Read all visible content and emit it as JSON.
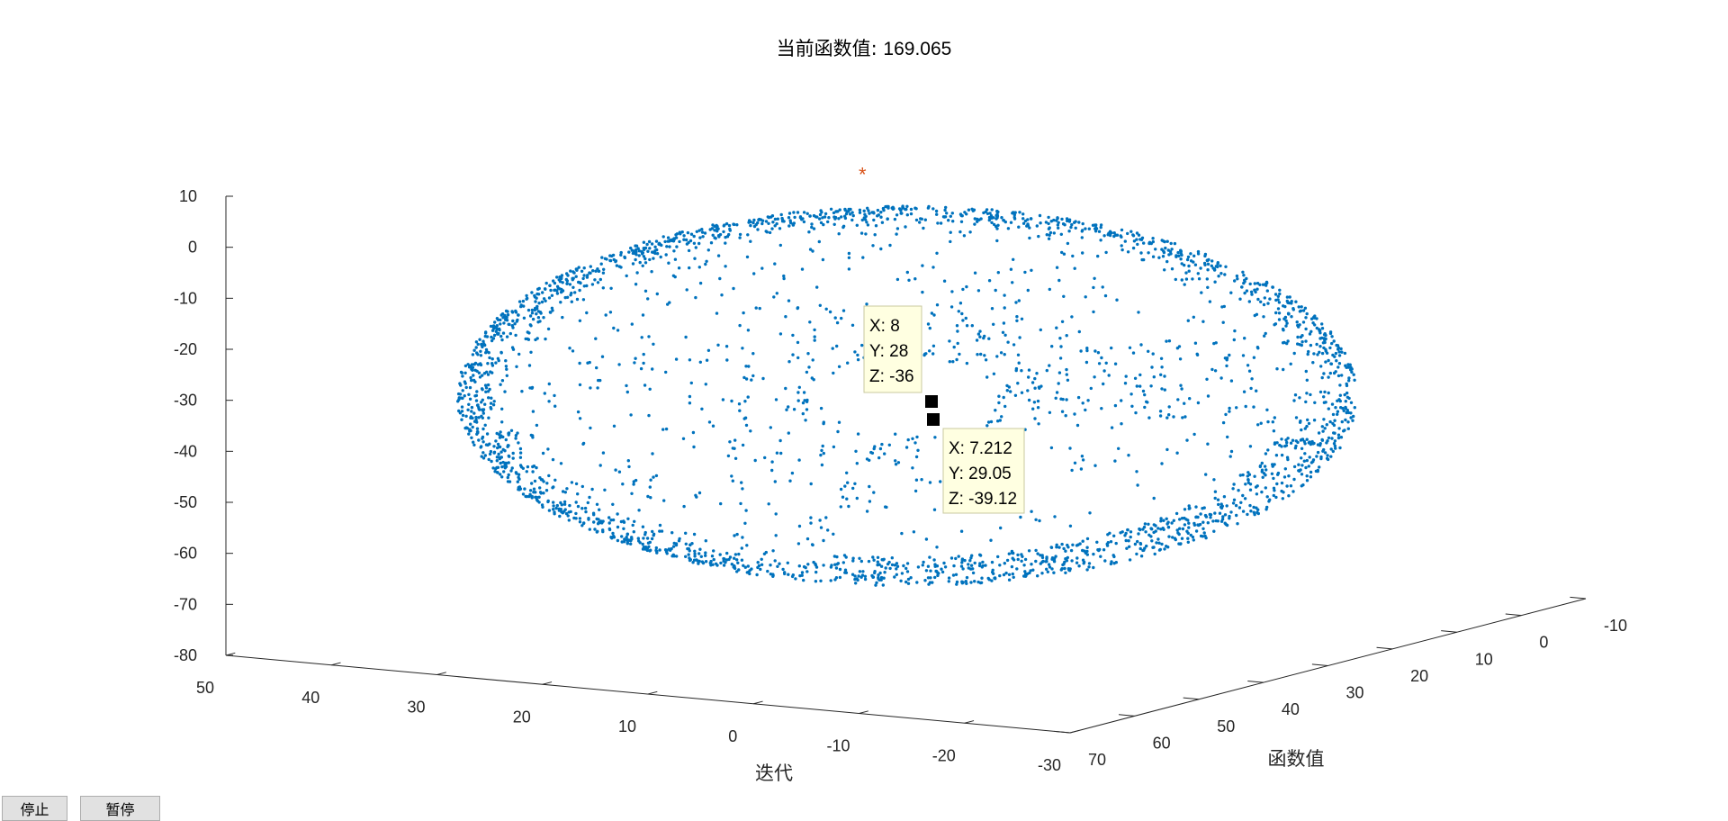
{
  "title_prefix": "当前函数值: ",
  "title_value": "169.065",
  "buttons": {
    "stop": "停止",
    "pause": "暂停"
  },
  "colors": {
    "points": "#0072bd",
    "marker": "#d95319",
    "datatip_bg": "#ffffe1",
    "axis": "#262626"
  },
  "chart_data": {
    "type": "scatter",
    "title": "当前函数值: 169.065",
    "xlabel": "迭代",
    "ylabel": "函数值",
    "zlabel": "",
    "xlim": [
      -30,
      50
    ],
    "ylim": [
      -10,
      70
    ],
    "zlim": [
      -80,
      10
    ],
    "x_ticks": [
      -30,
      -20,
      -10,
      0,
      10,
      20,
      30,
      40,
      50
    ],
    "y_ticks": [
      -10,
      0,
      10,
      20,
      30,
      40,
      50,
      60,
      70
    ],
    "z_ticks": [
      -80,
      -70,
      -60,
      -50,
      -40,
      -30,
      -20,
      -10,
      0,
      10
    ],
    "grid": false,
    "series": [
      {
        "marker": "dot",
        "description": "Lorenz-attractor-like point cloud, approximately 3000 points",
        "count": 3000
      }
    ],
    "current_point": {
      "marker": "asterisk",
      "x": 30,
      "y": 4,
      "z": -5
    },
    "datatips": [
      {
        "x": "8",
        "y": "28",
        "z": "-36"
      },
      {
        "x": "7.212",
        "y": "29.05",
        "z": "-39.12"
      }
    ]
  }
}
